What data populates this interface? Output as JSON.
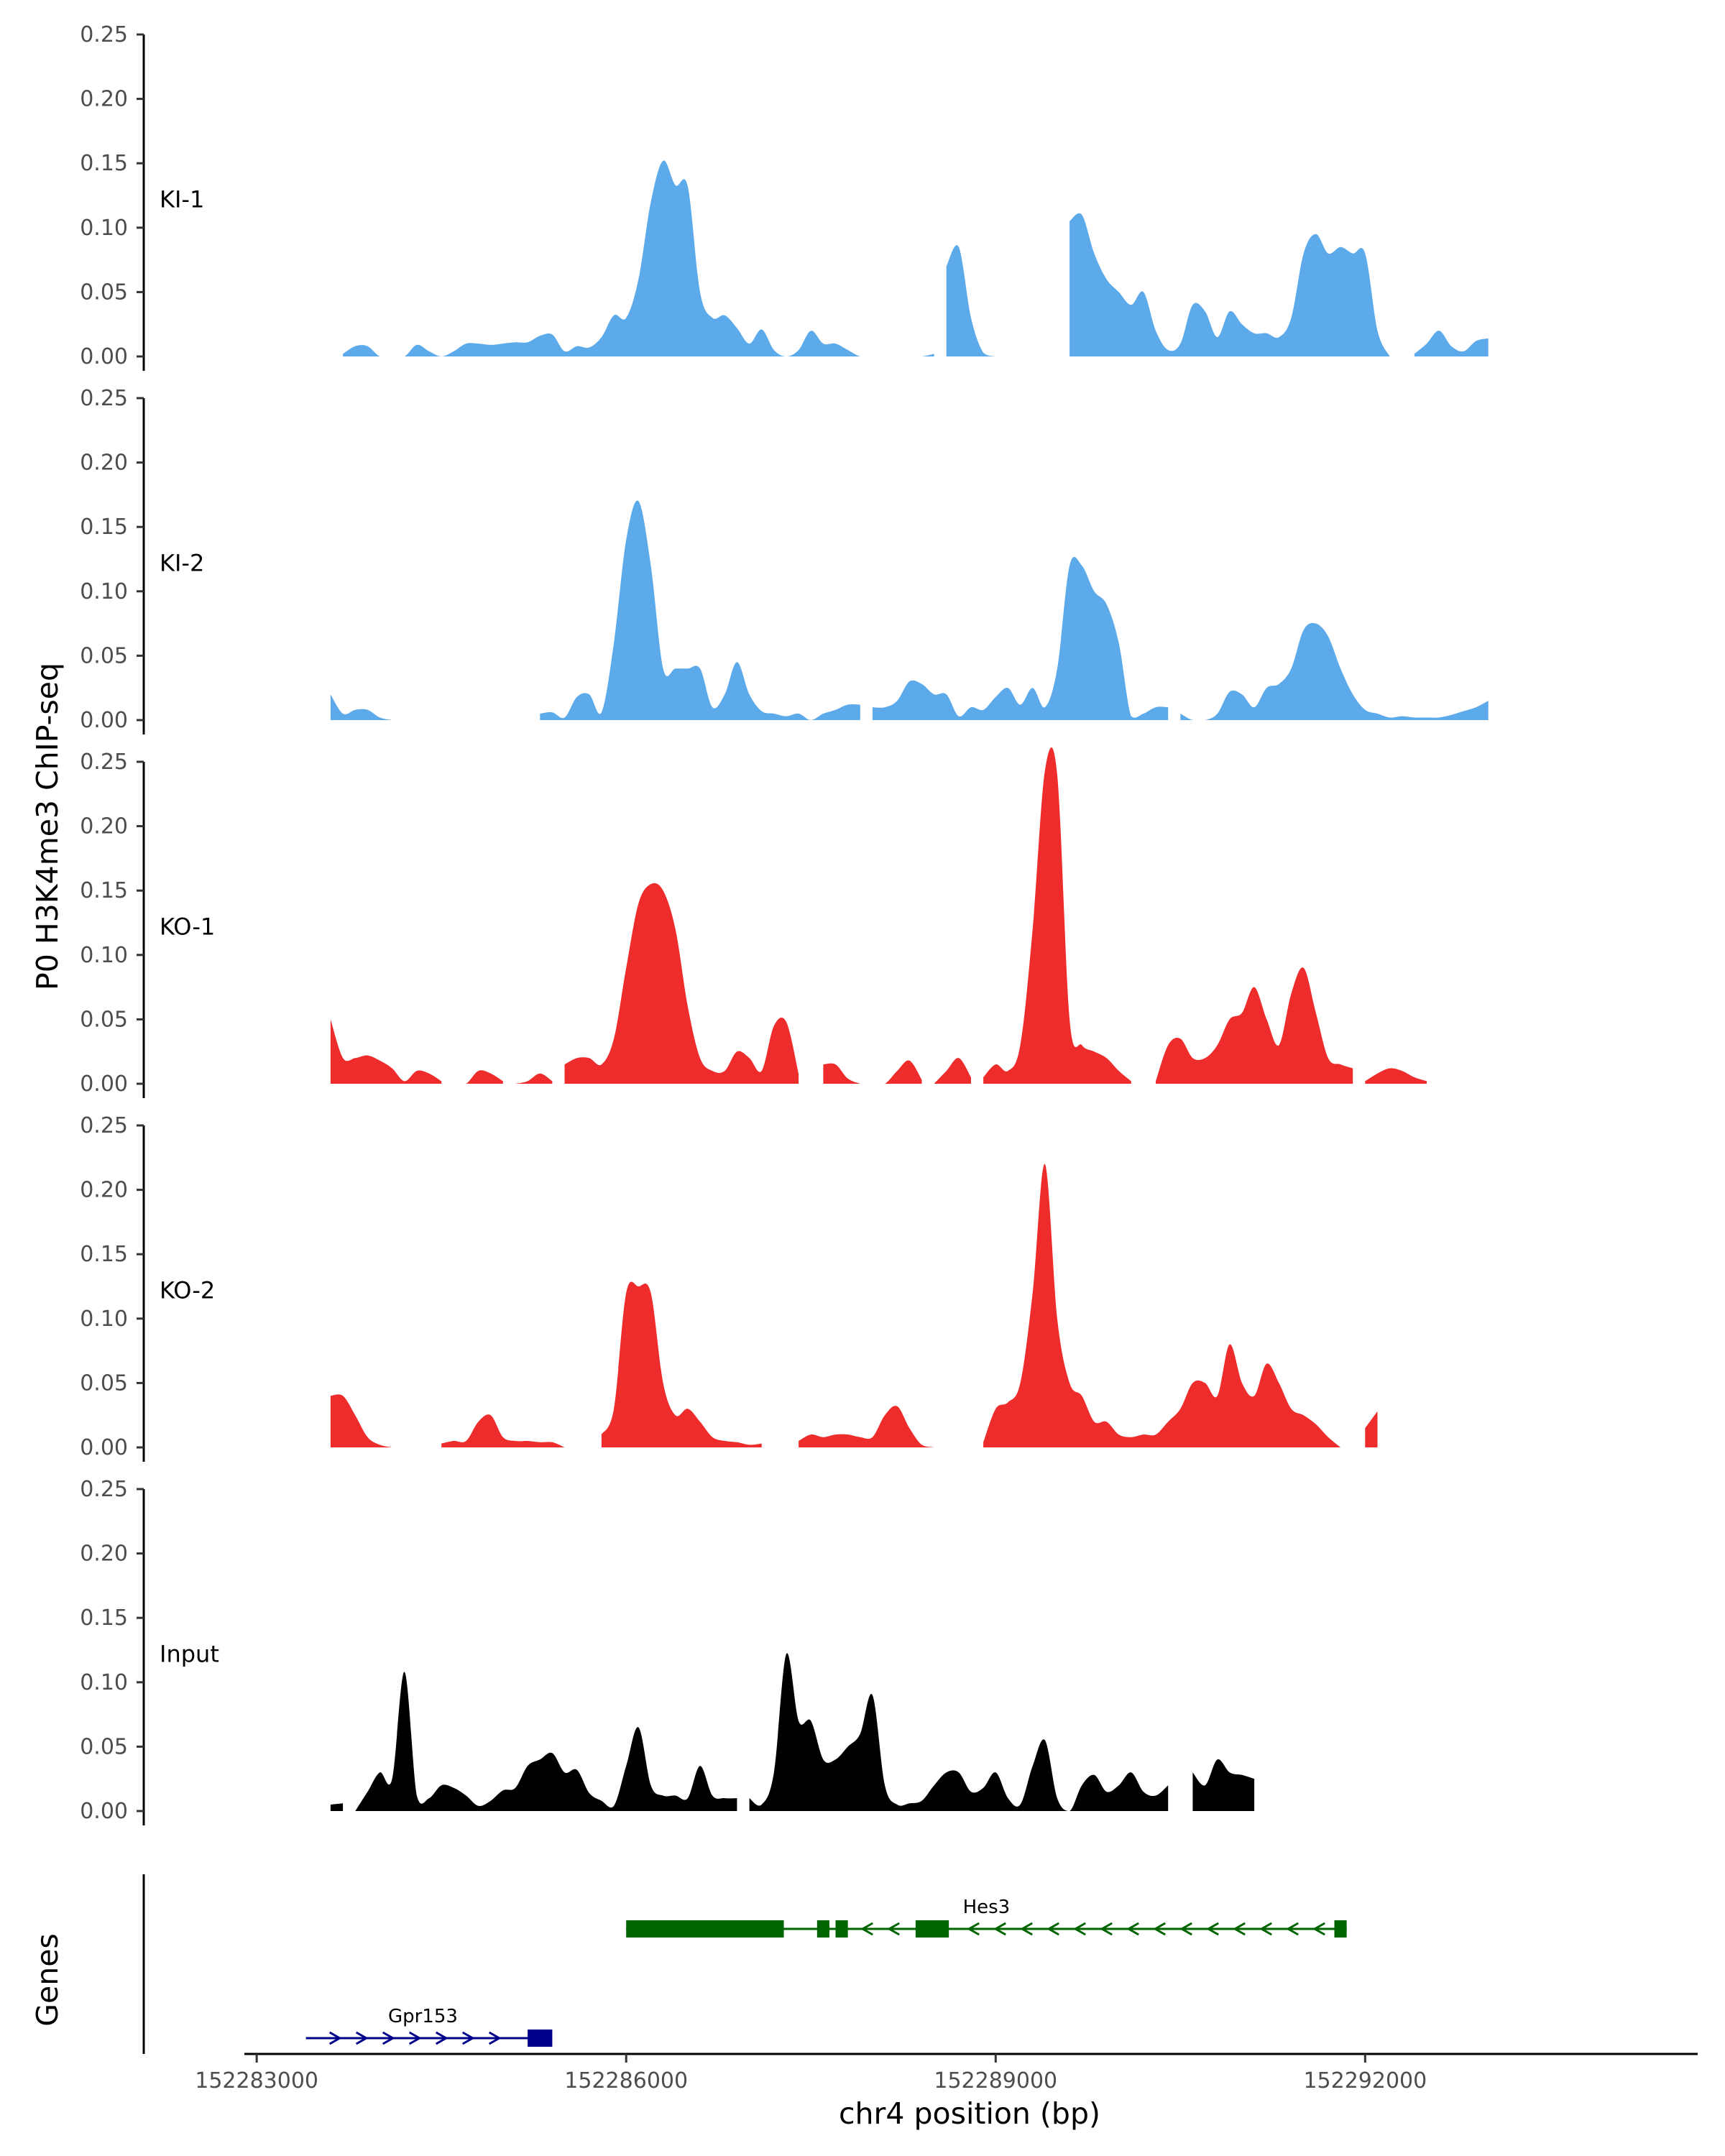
{
  "chart_data": {
    "type": "area",
    "ylabel": "P0 H3K4me3 ChIP-seq",
    "xlabel": "chr4 position (bp)",
    "genes_label": "Genes",
    "xlim": [
      152282900,
      152294700
    ],
    "ylim": [
      0,
      0.25
    ],
    "y_ticks": [
      "0.00",
      "0.05",
      "0.10",
      "0.15",
      "0.20",
      "0.25"
    ],
    "y_tick_values": [
      0,
      0.05,
      0.1,
      0.15,
      0.2,
      0.25
    ],
    "x_ticks": [
      "152283000",
      "152286000",
      "152289000",
      "152292000"
    ],
    "x_tick_values": [
      152283000,
      152286000,
      152289000,
      152292000
    ],
    "x_start": 152283600,
    "x_step": 100,
    "tracks": [
      {
        "name": "KI-1",
        "color": "#5DAAEB",
        "values": [
          0.017,
          0.002,
          0.008,
          0.008,
          0,
          0,
          0,
          0.009,
          0.004,
          0,
          0.004,
          0.01,
          0.01,
          0.009,
          0.01,
          0.011,
          0.011,
          0.016,
          0.017,
          0.004,
          0.008,
          0.007,
          0.015,
          0.032,
          0.03,
          0.06,
          0.12,
          0.152,
          0.133,
          0.132,
          0.05,
          0.03,
          0.032,
          0.022,
          0.01,
          0.021,
          0.005,
          0,
          0.005,
          0.02,
          0.01,
          0.01,
          0.005,
          0,
          0,
          0,
          0,
          0,
          0,
          0.002,
          0.07,
          0.085,
          0.03,
          0.003,
          0,
          0,
          0,
          0.004,
          0.008,
          0.03,
          0.105,
          0.11,
          0.08,
          0.06,
          0.05,
          0.04,
          0.05,
          0.02,
          0.005,
          0.01,
          0.04,
          0.035,
          0.015,
          0.035,
          0.025,
          0.018,
          0.018,
          0.015,
          0.03,
          0.08,
          0.095,
          0.08,
          0.085,
          0.08,
          0.08,
          0.02,
          0,
          0,
          0.002,
          0.01,
          0.02,
          0.008,
          0.004,
          0.012,
          0.014
        ],
        "gaps": [
          [
            0,
            1
          ],
          [
            49,
            50
          ],
          [
            55,
            60
          ],
          [
            86,
            88
          ]
        ]
      },
      {
        "name": "KI-2",
        "color": "#5DAAEB",
        "values": [
          0.02,
          0.005,
          0.008,
          0.008,
          0.002,
          0,
          0,
          0,
          0,
          0,
          0,
          0,
          0,
          0,
          0,
          0,
          0,
          0.005,
          0.006,
          0.002,
          0.018,
          0.02,
          0.006,
          0.06,
          0.14,
          0.17,
          0.12,
          0.04,
          0.04,
          0.04,
          0.04,
          0.01,
          0.02,
          0.045,
          0.02,
          0.007,
          0.005,
          0.003,
          0.005,
          0,
          0.005,
          0.008,
          0.012,
          0.012,
          0.01,
          0.01,
          0.015,
          0.03,
          0.028,
          0.02,
          0.02,
          0.003,
          0.01,
          0.008,
          0.018,
          0.025,
          0.012,
          0.025,
          0.01,
          0.04,
          0.12,
          0.12,
          0.1,
          0.09,
          0.06,
          0.003,
          0.005,
          0.01,
          0.01,
          0.005,
          0,
          0,
          0.005,
          0.022,
          0.02,
          0.01,
          0.025,
          0.028,
          0.04,
          0.07,
          0.075,
          0.065,
          0.04,
          0.02,
          0.008,
          0.005,
          0.002,
          0.003,
          0.002,
          0.002,
          0.002,
          0.004,
          0.007,
          0.01,
          0.015
        ],
        "gaps": [
          [
            5,
            17
          ],
          [
            43,
            44
          ],
          [
            68,
            69
          ]
        ]
      },
      {
        "name": "KO-1",
        "color": "#EE2C2C",
        "values": [
          0.05,
          0.02,
          0.02,
          0.022,
          0.018,
          0.012,
          0.002,
          0.01,
          0.008,
          0.002,
          0,
          0,
          0.01,
          0.008,
          0.002,
          0,
          0.002,
          0.008,
          0.002,
          0.015,
          0.02,
          0.02,
          0.015,
          0.035,
          0.09,
          0.14,
          0.155,
          0.15,
          0.12,
          0.06,
          0.02,
          0.01,
          0.01,
          0.025,
          0.02,
          0.01,
          0.045,
          0.048,
          0.008,
          0,
          0.015,
          0.015,
          0.004,
          0,
          0,
          0,
          0.01,
          0.018,
          0.003,
          0,
          0.01,
          0.02,
          0.005,
          0.005,
          0.015,
          0.01,
          0.03,
          0.12,
          0.243,
          0.24,
          0.05,
          0.03,
          0.025,
          0.02,
          0.01,
          0.002,
          0,
          0.002,
          0.03,
          0.035,
          0.02,
          0.02,
          0.03,
          0.05,
          0.055,
          0.075,
          0.05,
          0.03,
          0.07,
          0.09,
          0.055,
          0.02,
          0.015,
          0.012,
          0.002,
          0.008,
          0.012,
          0.01,
          0.005,
          0.002
        ],
        "gaps": [
          [
            9,
            10
          ],
          [
            14,
            15
          ],
          [
            18,
            19
          ],
          [
            38,
            40
          ],
          [
            43,
            44
          ],
          [
            48,
            49
          ],
          [
            52,
            53
          ],
          [
            65,
            67
          ],
          [
            83,
            84
          ]
        ]
      },
      {
        "name": "KO-2",
        "color": "#EE2C2C",
        "values": [
          0.04,
          0.04,
          0.025,
          0.008,
          0.002,
          0,
          0,
          0,
          0,
          0.003,
          0.005,
          0.005,
          0.02,
          0.025,
          0.008,
          0.005,
          0.005,
          0.004,
          0.004,
          0,
          0,
          0,
          0.01,
          0.03,
          0.12,
          0.125,
          0.12,
          0.05,
          0.025,
          0.03,
          0.02,
          0.008,
          0.005,
          0.004,
          0.002,
          0.003,
          0.002,
          0,
          0.005,
          0.01,
          0.008,
          0.01,
          0.01,
          0.008,
          0.008,
          0.025,
          0.032,
          0.015,
          0.002,
          0,
          0,
          0,
          0,
          0.004,
          0.03,
          0.035,
          0.05,
          0.12,
          0.22,
          0.1,
          0.05,
          0.04,
          0.02,
          0.02,
          0.01,
          0.008,
          0.01,
          0.01,
          0.02,
          0.03,
          0.05,
          0.05,
          0.04,
          0.08,
          0.05,
          0.04,
          0.065,
          0.05,
          0.03,
          0.025,
          0.018,
          0.008,
          0,
          0,
          0.015,
          0.028
        ],
        "gaps": [
          [
            5,
            9
          ],
          [
            19,
            22
          ],
          [
            35,
            38
          ],
          [
            49,
            53
          ],
          [
            82,
            84
          ]
        ]
      },
      {
        "name": "Input",
        "color": "#000000",
        "values": [
          0.005,
          0.006,
          0,
          0.015,
          0.03,
          0.025,
          0.108,
          0.012,
          0.01,
          0.02,
          0.018,
          0.012,
          0.004,
          0.008,
          0.016,
          0.018,
          0.035,
          0.04,
          0.045,
          0.03,
          0.032,
          0.014,
          0.008,
          0.004,
          0.035,
          0.065,
          0.02,
          0.012,
          0.012,
          0.01,
          0.035,
          0.012,
          0.01,
          0.01,
          0.01,
          0.005,
          0.03,
          0.122,
          0.07,
          0.07,
          0.04,
          0.04,
          0.05,
          0.06,
          0.09,
          0.02,
          0.005,
          0.006,
          0.008,
          0.02,
          0.03,
          0.03,
          0.015,
          0.018,
          0.03,
          0.01,
          0.005,
          0.035,
          0.055,
          0.01,
          0,
          0.02,
          0.028,
          0.015,
          0.02,
          0.03,
          0.015,
          0.012,
          0.02,
          0.02,
          0.03,
          0.02,
          0.04,
          0.03,
          0.028,
          0.025
        ],
        "gaps": [
          [
            1,
            2
          ],
          [
            33,
            34
          ],
          [
            68,
            70
          ]
        ]
      }
    ],
    "genes": [
      {
        "name": "Gpr153",
        "color": "#00008B",
        "strand": "+",
        "row": 2,
        "start": 152283400,
        "end": 152285300,
        "exon_start": 152285200,
        "exon_end": 152285400
      },
      {
        "name": "Hes3",
        "color": "#006400",
        "strand": "-",
        "row": 1,
        "start": 152286000,
        "end": 152291850,
        "exons": [
          [
            152286000,
            152287280
          ],
          [
            152287550,
            152287650
          ],
          [
            152287700,
            152287800
          ],
          [
            152288350,
            152288620
          ],
          [
            152291750,
            152291850
          ]
        ]
      }
    ]
  }
}
